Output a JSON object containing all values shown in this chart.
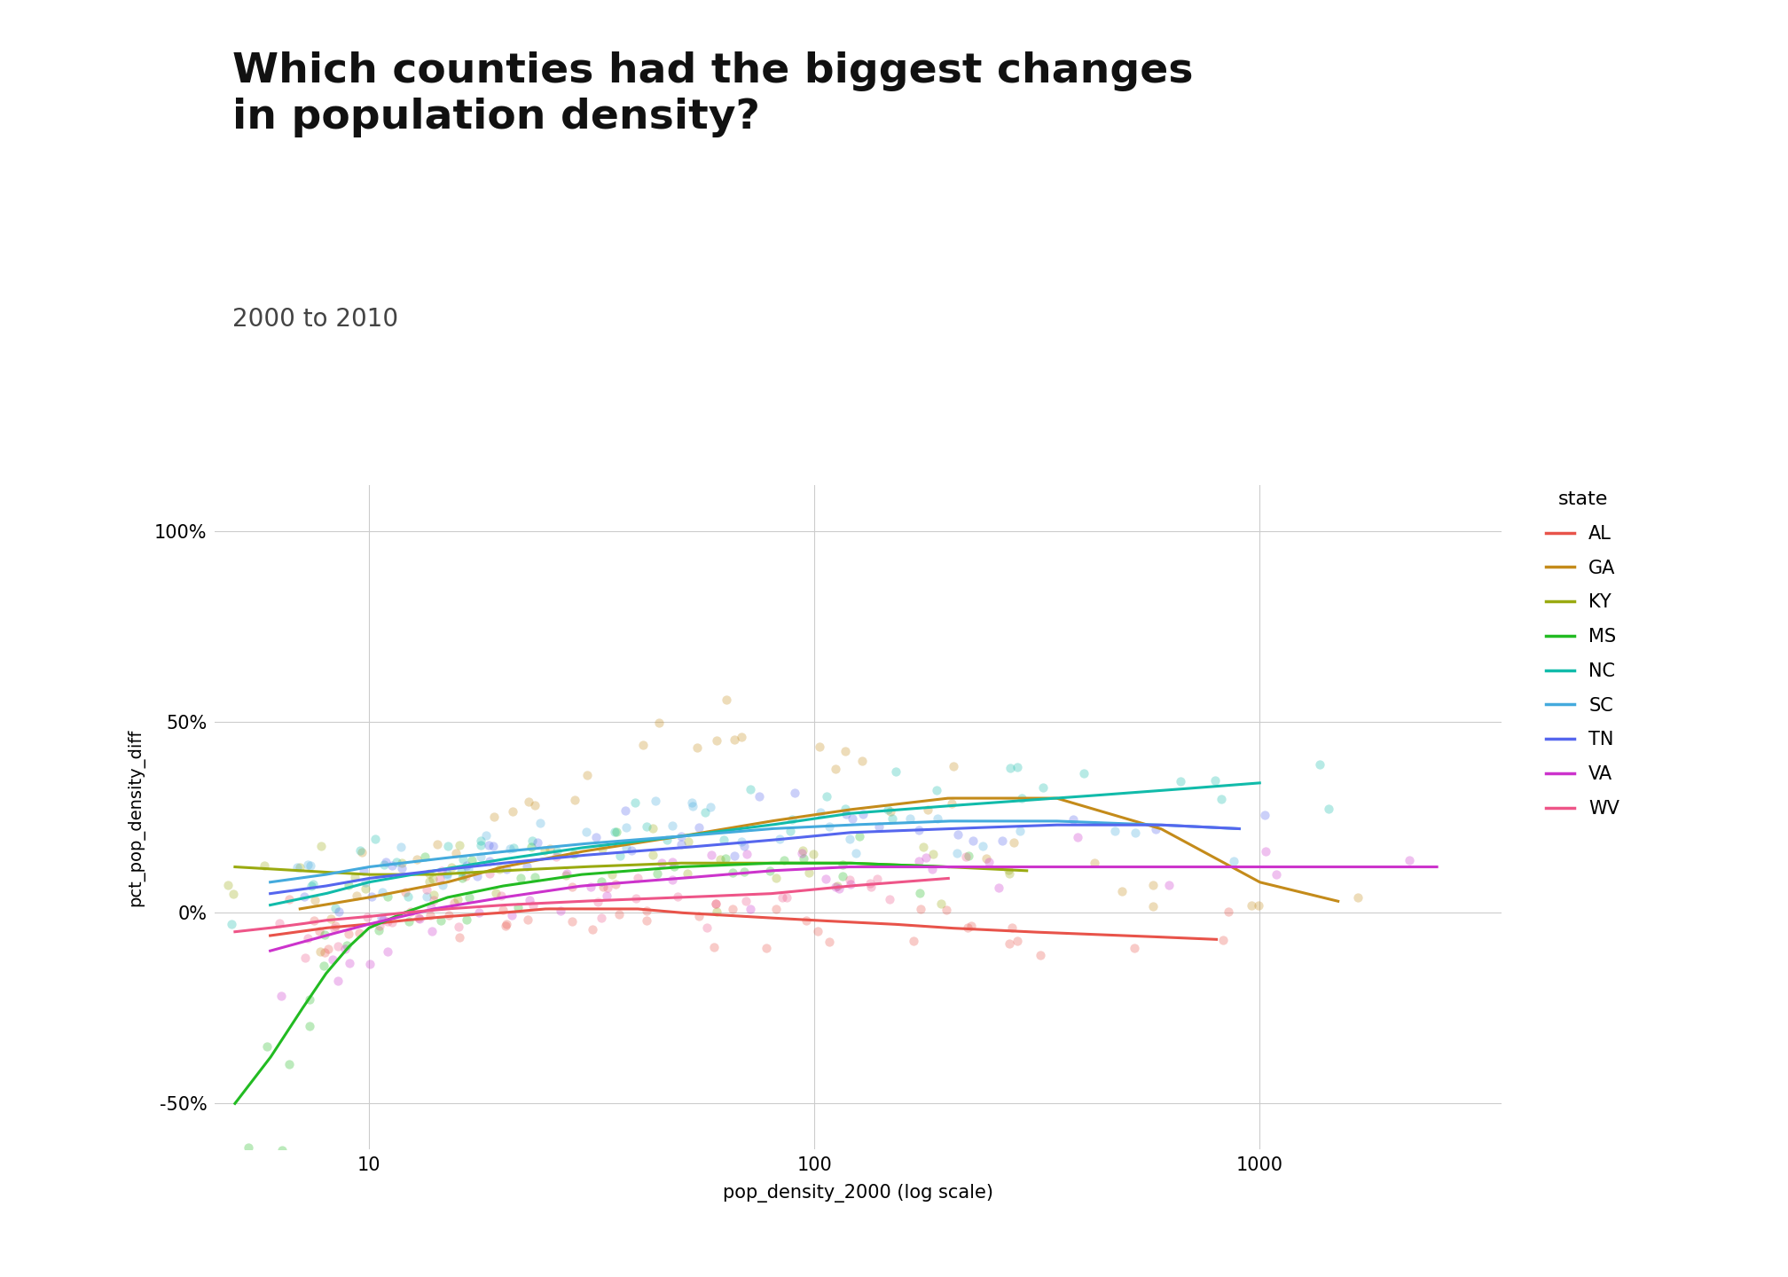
{
  "title": "Which counties had the biggest changes\nin population density?",
  "subtitle": "2000 to 2010",
  "xlabel": "pop_density_2000 (log scale)",
  "ylabel": "pct_pop_density_diff",
  "bg_color": "#ffffff",
  "states": [
    "AL",
    "GA",
    "KY",
    "MS",
    "NC",
    "SC",
    "TN",
    "VA",
    "WV"
  ],
  "state_colors": {
    "AL": "#e8534a",
    "GA": "#c48b1a",
    "KY": "#9aaa10",
    "MS": "#22bb22",
    "NC": "#11bbaa",
    "SC": "#44aadd",
    "TN": "#5566ee",
    "VA": "#cc33cc",
    "WV": "#ee5588"
  },
  "scatter_alpha": 0.3,
  "scatter_size": 55,
  "ylim": [
    -0.62,
    1.12
  ],
  "xlim_log": [
    4.5,
    3500
  ],
  "yticks": [
    -0.5,
    0.0,
    0.5,
    1.0
  ],
  "ytick_labels": [
    "-50%",
    "0%",
    "50%",
    "100%"
  ],
  "xticks": [
    10,
    100,
    1000
  ],
  "grid_color": "#cccccc",
  "trend_lines": {
    "AL": {
      "x": [
        6,
        8,
        10,
        12,
        15,
        20,
        25,
        30,
        40,
        50,
        70,
        100,
        150,
        200,
        300,
        500,
        800
      ],
      "y": [
        -0.06,
        -0.04,
        -0.03,
        -0.02,
        -0.01,
        0.0,
        0.01,
        0.01,
        0.01,
        0.0,
        -0.01,
        -0.02,
        -0.03,
        -0.04,
        -0.05,
        -0.06,
        -0.07
      ]
    },
    "GA": {
      "x": [
        7,
        10,
        15,
        20,
        30,
        50,
        80,
        120,
        200,
        350,
        600,
        1000,
        1500
      ],
      "y": [
        0.01,
        0.04,
        0.08,
        0.12,
        0.16,
        0.2,
        0.24,
        0.27,
        0.3,
        0.3,
        0.22,
        0.08,
        0.03
      ]
    },
    "KY": {
      "x": [
        5,
        7,
        10,
        14,
        20,
        30,
        50,
        80,
        120,
        200,
        300
      ],
      "y": [
        0.12,
        0.11,
        0.1,
        0.1,
        0.11,
        0.12,
        0.13,
        0.13,
        0.13,
        0.12,
        0.11
      ]
    },
    "MS": {
      "x": [
        5,
        6,
        7,
        8,
        9,
        10,
        12,
        15,
        20,
        30,
        50,
        80,
        120,
        200
      ],
      "y": [
        -0.5,
        -0.38,
        -0.26,
        -0.16,
        -0.09,
        -0.04,
        0.0,
        0.04,
        0.07,
        0.1,
        0.12,
        0.13,
        0.13,
        0.12
      ]
    },
    "NC": {
      "x": [
        6,
        8,
        10,
        14,
        20,
        30,
        50,
        80,
        120,
        200,
        350,
        600,
        1000
      ],
      "y": [
        0.02,
        0.05,
        0.08,
        0.11,
        0.14,
        0.17,
        0.2,
        0.23,
        0.26,
        0.28,
        0.3,
        0.32,
        0.34
      ]
    },
    "SC": {
      "x": [
        6,
        8,
        10,
        14,
        20,
        30,
        50,
        80,
        120,
        200,
        350,
        600,
        900
      ],
      "y": [
        0.08,
        0.1,
        0.12,
        0.14,
        0.16,
        0.18,
        0.2,
        0.22,
        0.23,
        0.24,
        0.24,
        0.23,
        0.22
      ]
    },
    "TN": {
      "x": [
        6,
        8,
        10,
        14,
        20,
        30,
        50,
        80,
        120,
        200,
        350,
        600,
        900
      ],
      "y": [
        0.05,
        0.07,
        0.09,
        0.11,
        0.13,
        0.15,
        0.17,
        0.19,
        0.21,
        0.22,
        0.23,
        0.23,
        0.22
      ]
    },
    "VA": {
      "x": [
        6,
        8,
        10,
        14,
        20,
        30,
        50,
        80,
        120,
        200,
        400,
        800,
        1500,
        2500
      ],
      "y": [
        -0.1,
        -0.06,
        -0.03,
        0.01,
        0.04,
        0.07,
        0.09,
        0.11,
        0.12,
        0.12,
        0.12,
        0.12,
        0.12,
        0.12
      ]
    },
    "WV": {
      "x": [
        5,
        6,
        7,
        8,
        10,
        12,
        15,
        20,
        30,
        50,
        80,
        120,
        200
      ],
      "y": [
        -0.05,
        -0.04,
        -0.03,
        -0.02,
        -0.01,
        0.0,
        0.01,
        0.02,
        0.03,
        0.04,
        0.05,
        0.07,
        0.09
      ]
    }
  },
  "scatter_data": {
    "AL": {
      "x": [
        6.5,
        7,
        7.5,
        8,
        8.5,
        9,
        9.5,
        10,
        11,
        12,
        13,
        14,
        15,
        16,
        17,
        18,
        19,
        20,
        22,
        24,
        26,
        28,
        30,
        33,
        36,
        40,
        44,
        48,
        53,
        58,
        65,
        72,
        80,
        90,
        100,
        110,
        125,
        140,
        160,
        180,
        200,
        230,
        260,
        300,
        350,
        400,
        500,
        650,
        800
      ],
      "y": [
        -0.08,
        -0.05,
        -0.03,
        -0.04,
        -0.06,
        -0.05,
        -0.04,
        -0.03,
        -0.02,
        -0.01,
        0.0,
        0.01,
        0.02,
        0.03,
        0.02,
        0.01,
        0.01,
        0.02,
        0.03,
        0.02,
        0.01,
        0.0,
        -0.01,
        0.0,
        0.01,
        0.0,
        -0.01,
        -0.02,
        -0.01,
        0.0,
        -0.01,
        -0.02,
        -0.03,
        -0.04,
        -0.05,
        -0.04,
        -0.05,
        -0.06,
        -0.05,
        -0.06,
        -0.07,
        -0.06,
        -0.07,
        -0.08,
        -0.07,
        -0.08,
        -0.09,
        -0.1,
        -0.11
      ]
    },
    "GA": {
      "x": [
        7,
        8,
        9,
        10,
        11,
        12,
        14,
        16,
        18,
        20,
        22,
        25,
        28,
        32,
        36,
        40,
        45,
        50,
        56,
        63,
        70,
        80,
        90,
        100,
        115,
        130,
        150,
        170,
        200,
        230,
        270,
        320,
        380,
        450,
        550,
        700,
        900,
        1200,
        1600
      ],
      "y": [
        -0.05,
        0.0,
        0.03,
        0.06,
        0.09,
        0.11,
        0.13,
        0.16,
        0.19,
        0.21,
        0.23,
        0.26,
        0.29,
        0.32,
        0.36,
        0.4,
        0.43,
        0.46,
        0.49,
        0.52,
        0.5,
        0.47,
        0.43,
        0.4,
        0.37,
        0.34,
        0.31,
        0.29,
        0.27,
        0.24,
        0.21,
        0.18,
        0.14,
        0.11,
        0.08,
        0.06,
        0.04,
        0.03,
        0.02
      ]
    },
    "KY": {
      "x": [
        5,
        6,
        7,
        7.5,
        8,
        9,
        10,
        11,
        12,
        13,
        14,
        15,
        16,
        17,
        18,
        20,
        22,
        25,
        28,
        32,
        36,
        40,
        45,
        50,
        56,
        63,
        70,
        80,
        90,
        100,
        115,
        130,
        150,
        180,
        210,
        250,
        300
      ],
      "y": [
        0.09,
        0.1,
        0.11,
        0.12,
        0.11,
        0.1,
        0.09,
        0.1,
        0.11,
        0.12,
        0.11,
        0.12,
        0.11,
        0.1,
        0.11,
        0.12,
        0.13,
        0.12,
        0.13,
        0.14,
        0.13,
        0.14,
        0.13,
        0.14,
        0.13,
        0.12,
        0.13,
        0.12,
        0.13,
        0.12,
        0.11,
        0.12,
        0.11,
        0.1,
        0.11,
        0.1,
        0.09
      ]
    },
    "MS": {
      "x": [
        5,
        5.5,
        6,
        6.5,
        7,
        7.5,
        8,
        8.5,
        9,
        9.5,
        10,
        11,
        12,
        13,
        14,
        15,
        16,
        17,
        18,
        20,
        22,
        25,
        28,
        32,
        36,
        40,
        45,
        50,
        56,
        63,
        70,
        80,
        90,
        100,
        115,
        130,
        150,
        180,
        210
      ],
      "y": [
        -0.58,
        -0.5,
        -0.42,
        -0.35,
        -0.28,
        -0.22,
        -0.16,
        -0.11,
        -0.07,
        -0.04,
        -0.01,
        0.01,
        0.03,
        0.04,
        0.05,
        0.06,
        0.06,
        0.07,
        0.08,
        0.09,
        0.1,
        0.1,
        0.11,
        0.11,
        0.12,
        0.12,
        0.12,
        0.13,
        0.13,
        0.13,
        0.13,
        0.13,
        0.13,
        0.13,
        0.12,
        0.12,
        0.12,
        0.11,
        0.1
      ]
    },
    "NC": {
      "x": [
        6,
        7,
        8,
        9,
        10,
        11,
        12,
        13,
        14,
        15,
        16,
        17,
        18,
        20,
        22,
        25,
        28,
        32,
        36,
        40,
        45,
        50,
        56,
        63,
        70,
        80,
        90,
        100,
        115,
        130,
        150,
        170,
        200,
        230,
        270,
        320,
        380,
        450,
        550,
        700,
        900,
        1200,
        1600
      ],
      "y": [
        0.0,
        0.03,
        0.06,
        0.08,
        0.1,
        0.12,
        0.13,
        0.13,
        0.12,
        0.13,
        0.14,
        0.15,
        0.14,
        0.15,
        0.16,
        0.17,
        0.18,
        0.19,
        0.2,
        0.21,
        0.22,
        0.23,
        0.24,
        0.25,
        0.25,
        0.26,
        0.27,
        0.27,
        0.28,
        0.28,
        0.29,
        0.29,
        0.3,
        0.3,
        0.31,
        0.31,
        0.32,
        0.32,
        0.33,
        0.34,
        0.35,
        0.36,
        0.37
      ]
    },
    "SC": {
      "x": [
        7,
        8,
        9,
        10,
        11,
        12,
        13,
        14,
        15,
        16,
        17,
        18,
        20,
        22,
        25,
        28,
        32,
        36,
        40,
        45,
        50,
        56,
        63,
        70,
        80,
        90,
        100,
        115,
        130,
        150,
        170,
        200,
        250,
        300,
        400,
        600,
        900
      ],
      "y": [
        0.07,
        0.08,
        0.09,
        0.1,
        0.11,
        0.12,
        0.13,
        0.14,
        0.14,
        0.15,
        0.15,
        0.16,
        0.17,
        0.18,
        0.19,
        0.2,
        0.21,
        0.21,
        0.22,
        0.22,
        0.23,
        0.23,
        0.23,
        0.24,
        0.24,
        0.24,
        0.23,
        0.23,
        0.23,
        0.23,
        0.23,
        0.23,
        0.23,
        0.22,
        0.22,
        0.21,
        0.2
      ]
    },
    "TN": {
      "x": [
        7,
        8,
        9,
        10,
        11,
        12,
        13,
        14,
        15,
        16,
        17,
        18,
        20,
        22,
        25,
        28,
        32,
        36,
        40,
        45,
        50,
        56,
        63,
        70,
        80,
        90,
        100,
        115,
        130,
        150,
        170,
        200,
        250,
        300,
        400,
        600,
        900
      ],
      "y": [
        0.04,
        0.05,
        0.06,
        0.07,
        0.08,
        0.09,
        0.1,
        0.11,
        0.12,
        0.13,
        0.13,
        0.14,
        0.15,
        0.16,
        0.17,
        0.18,
        0.19,
        0.19,
        0.2,
        0.21,
        0.21,
        0.22,
        0.22,
        0.22,
        0.23,
        0.23,
        0.23,
        0.23,
        0.23,
        0.22,
        0.22,
        0.22,
        0.22,
        0.21,
        0.2,
        0.19,
        0.18
      ]
    },
    "VA": {
      "x": [
        6,
        7,
        8,
        9,
        10,
        11,
        12,
        13,
        14,
        15,
        16,
        17,
        18,
        20,
        22,
        25,
        28,
        32,
        36,
        40,
        45,
        50,
        56,
        63,
        70,
        80,
        90,
        100,
        115,
        130,
        150,
        170,
        200,
        250,
        300,
        400,
        600,
        900,
        1400,
        2200
      ],
      "y": [
        -0.18,
        -0.15,
        -0.12,
        -0.09,
        -0.07,
        -0.05,
        -0.03,
        -0.01,
        0.01,
        0.02,
        0.03,
        0.04,
        0.05,
        0.06,
        0.07,
        0.08,
        0.09,
        0.1,
        0.1,
        0.11,
        0.11,
        0.11,
        0.11,
        0.11,
        0.11,
        0.11,
        0.11,
        0.11,
        0.11,
        0.11,
        0.11,
        0.12,
        0.12,
        0.12,
        0.12,
        0.12,
        0.12,
        0.12,
        0.12,
        0.12
      ]
    },
    "WV": {
      "x": [
        5,
        6,
        7,
        7.5,
        8,
        9,
        10,
        11,
        12,
        13,
        14,
        15,
        16,
        17,
        18,
        20,
        22,
        25,
        28,
        32,
        36,
        40,
        45,
        50,
        56,
        63,
        70,
        80,
        90,
        100,
        115,
        130,
        150,
        180,
        210
      ],
      "y": [
        -0.06,
        -0.05,
        -0.04,
        -0.04,
        -0.03,
        -0.03,
        -0.02,
        -0.02,
        -0.01,
        -0.01,
        0.0,
        0.0,
        0.01,
        0.01,
        0.02,
        0.02,
        0.02,
        0.03,
        0.03,
        0.03,
        0.04,
        0.04,
        0.04,
        0.05,
        0.05,
        0.05,
        0.06,
        0.06,
        0.06,
        0.07,
        0.07,
        0.07,
        0.08,
        0.09,
        0.1
      ]
    }
  }
}
